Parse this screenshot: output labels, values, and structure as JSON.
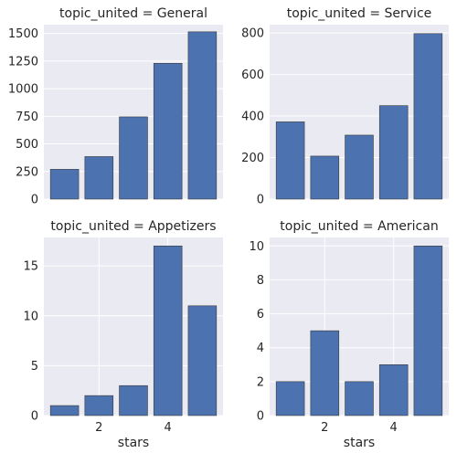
{
  "chart_data": [
    {
      "type": "bar",
      "title": "topic_united = General",
      "x": [
        1,
        2,
        3,
        4,
        5
      ],
      "values": [
        270,
        385,
        745,
        1230,
        1515
      ],
      "xlabel": "",
      "ylabel": "",
      "ylim": [
        0,
        1580
      ],
      "yticks": [
        0,
        250,
        500,
        750,
        1000,
        1250,
        1500
      ],
      "xlim": [
        0.4,
        5.6
      ],
      "xticks": [],
      "grid": true,
      "color": "#4c72b0"
    },
    {
      "type": "bar",
      "title": "topic_united = Service",
      "x": [
        1,
        2,
        3,
        4,
        5
      ],
      "values": [
        372,
        207,
        308,
        450,
        797
      ],
      "xlabel": "",
      "ylabel": "",
      "ylim": [
        0,
        840
      ],
      "yticks": [
        0,
        200,
        400,
        600,
        800
      ],
      "xlim": [
        0.4,
        5.6
      ],
      "xticks": [],
      "grid": true,
      "color": "#4c72b0"
    },
    {
      "type": "bar",
      "title": "topic_united = Appetizers",
      "x": [
        1,
        2,
        3,
        4,
        5
      ],
      "values": [
        1,
        2,
        3,
        17,
        11
      ],
      "xlabel": "stars",
      "ylabel": "",
      "ylim": [
        0,
        17.85
      ],
      "yticks": [
        0,
        5,
        10,
        15
      ],
      "xlim": [
        0.4,
        5.6
      ],
      "xticks": [
        2,
        4
      ],
      "grid": true,
      "color": "#4c72b0"
    },
    {
      "type": "bar",
      "title": "topic_united = American",
      "x": [
        1,
        2,
        3,
        4,
        5
      ],
      "values": [
        2,
        5,
        2,
        3,
        10
      ],
      "xlabel": "stars",
      "ylabel": "",
      "ylim": [
        0,
        10.5
      ],
      "yticks": [
        0,
        2,
        4,
        6,
        8,
        10
      ],
      "xlim": [
        0.4,
        5.6
      ],
      "xticks": [
        2,
        4
      ],
      "grid": true,
      "color": "#4c72b0"
    }
  ]
}
